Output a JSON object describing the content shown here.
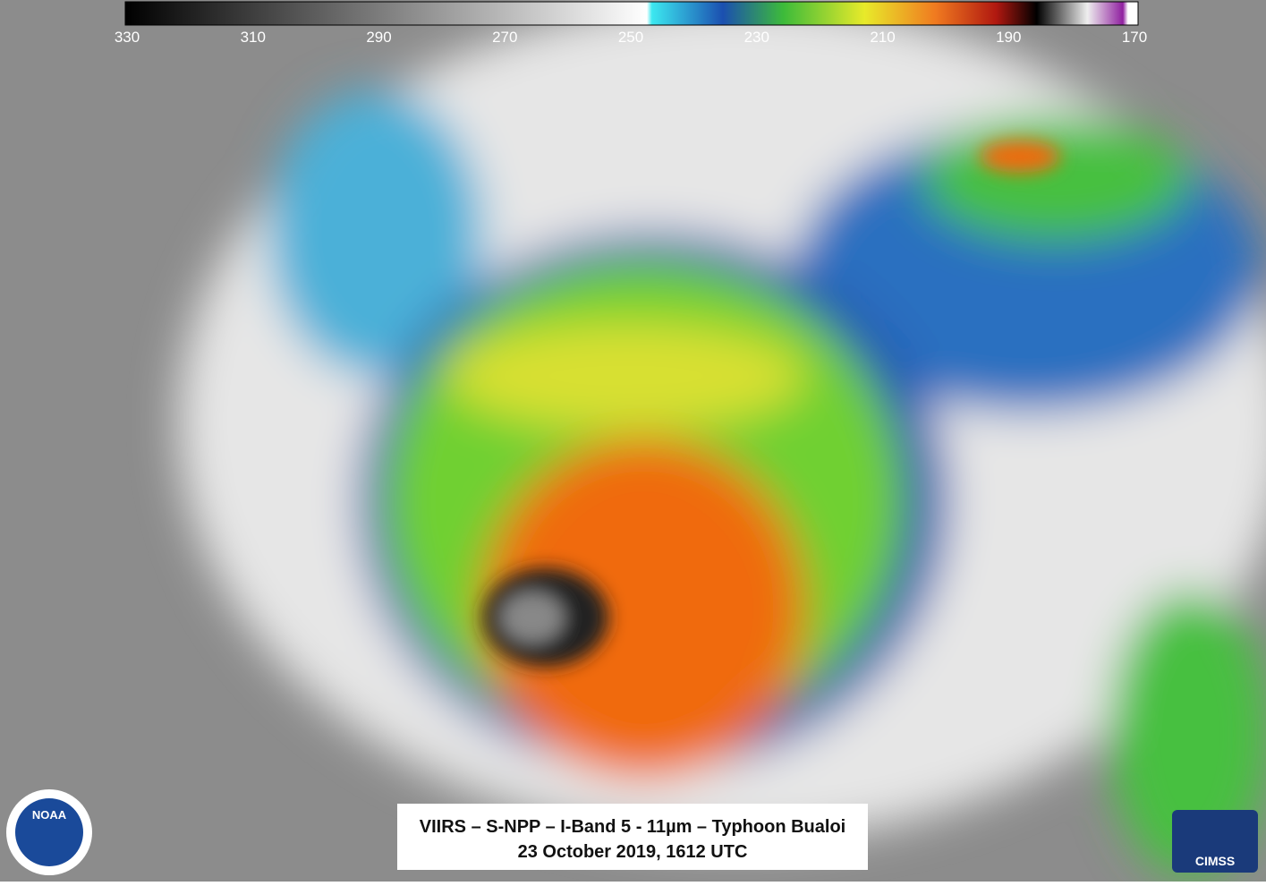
{
  "colorbar": {
    "ticks": [
      330,
      310,
      290,
      270,
      250,
      230,
      210,
      190,
      170
    ]
  },
  "caption": {
    "line1": "VIIRS – S-NPP – I-Band 5 - 11µm – Typhoon Bualoi",
    "line2": "23 October 2019, 1612 UTC"
  },
  "logos": {
    "noaa": "NOAA",
    "cimss": "CIMSS"
  }
}
